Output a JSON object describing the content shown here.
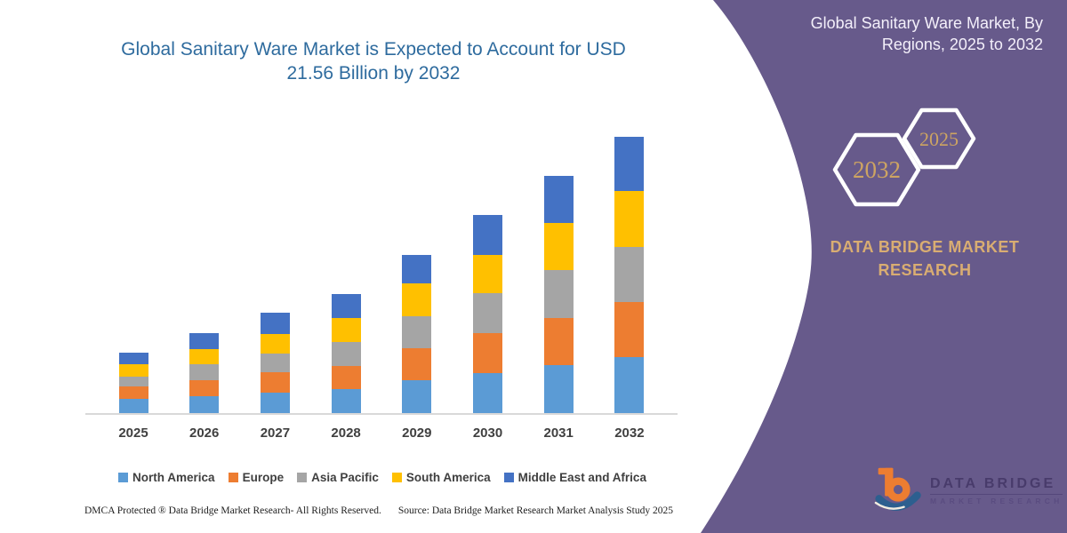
{
  "header": {
    "title_line1": "Global Sanitary Ware Market is Expected to Account for USD",
    "title_line2": "21.56 Billion by 2032"
  },
  "right_panel": {
    "panel_color": "#675a8b",
    "title_line1": "Global Sanitary Ware Market, By",
    "title_line2": "Regions, 2025 to 2032",
    "hexagons": [
      {
        "label": "2032"
      },
      {
        "label": "2025"
      }
    ],
    "brand_line1": "DATA BRIDGE MARKET",
    "brand_line2": "RESEARCH",
    "logo": {
      "name": "DATA BRIDGE",
      "tagline": "MARKET RESEARCH",
      "mark_colors": {
        "b": "#ed7d31",
        "swoosh": "#2d5f8f",
        "accent": "#f2ede1"
      }
    },
    "accent_gold": "#cda462"
  },
  "chart_data": {
    "type": "bar",
    "stacked": true,
    "title": "Global Sanitary Ware Market is Expected to Account for USD 21.56 Billion by 2032",
    "unit": "USD Billion",
    "xlabel": "",
    "ylabel": "",
    "ylim": [
      0,
      22
    ],
    "grid": false,
    "legend_position": "bottom",
    "axis_values_visible": false,
    "categories": [
      "2025",
      "2026",
      "2027",
      "2028",
      "2029",
      "2030",
      "2031",
      "2032"
    ],
    "series": [
      {
        "name": "North America",
        "color": "#5b9bd5",
        "values": [
          1.13,
          1.35,
          1.62,
          1.9,
          2.6,
          3.12,
          3.77,
          4.35
        ]
      },
      {
        "name": "Europe",
        "color": "#ed7d31",
        "values": [
          0.95,
          1.25,
          1.57,
          1.8,
          2.5,
          3.12,
          3.66,
          4.32
        ]
      },
      {
        "name": "Asia Pacific",
        "color": "#a5a5a5",
        "values": [
          0.74,
          1.22,
          1.44,
          1.85,
          2.5,
          3.12,
          3.75,
          4.32
        ]
      },
      {
        "name": "South America",
        "color": "#ffc000",
        "values": [
          1.0,
          1.21,
          1.53,
          1.85,
          2.52,
          3.01,
          3.7,
          4.35
        ]
      },
      {
        "name": "Middle East and Africa",
        "color": "#4472c4",
        "values": [
          0.92,
          1.22,
          1.71,
          1.92,
          2.27,
          3.12,
          3.66,
          4.22
        ]
      }
    ],
    "totals_estimated": [
      4.74,
      6.25,
      7.87,
      9.32,
      12.39,
      15.49,
      18.54,
      21.56
    ]
  },
  "footer": {
    "left": "DMCA Protected ® Data Bridge Market Research-  All Rights Reserved.",
    "right": "Source: Data Bridge Market Research  Market Analysis Study 2025"
  }
}
